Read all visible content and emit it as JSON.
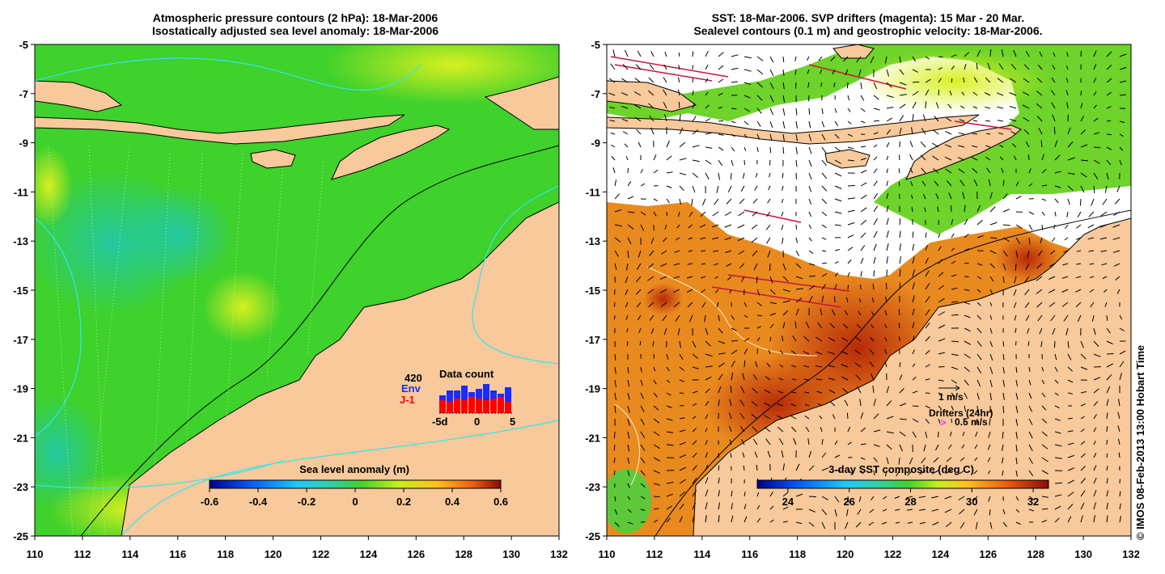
{
  "left_panel": {
    "title_line1": "Atmospheric pressure contours (2 hPa): 18-Mar-2006",
    "title_line2": "Isostatically adjusted sea level anomaly: 18-Mar-2006",
    "colorbar_label": "Sea level anomaly (m)",
    "colorbar_ticks": [
      "-0.6",
      "-0.4",
      "-0.2",
      "0",
      "0.2",
      "0.4",
      "0.6"
    ],
    "data_count": {
      "label": "Data count",
      "max": "420",
      "env_label": "Env",
      "j1_label": "J-1",
      "xticks": [
        "-5d",
        "0",
        "5"
      ],
      "env_values": [
        0.55,
        0.7,
        0.7,
        0.85,
        0.65,
        0.75,
        0.9,
        0.7,
        0.6,
        0.8
      ],
      "j1_values": [
        0.4,
        0.35,
        0.45,
        0.4,
        0.5,
        0.45,
        0.4,
        0.45,
        0.5,
        0.35
      ]
    }
  },
  "right_panel": {
    "title_line1": "SST: 18-Mar-2006. SVP drifters (magenta): 15 Mar - 20 Mar.",
    "title_line2": "Sealevel contours (0.1 m) and geostrophic velocity: 18-Mar-2006.",
    "colorbar_label": "3-day SST composite (deg C)",
    "colorbar_ticks": [
      "24",
      "26",
      "28",
      "30",
      "32"
    ],
    "velocity_scale_label": "1 m/s",
    "drifters_label": "Drifters (24hr)",
    "drifter_scale_label": "0.5 m/s",
    "drifter_symbol": ">"
  },
  "axes": {
    "lat_ticks": [
      "-5",
      "-7",
      "-9",
      "-11",
      "-13",
      "-15",
      "-17",
      "-19",
      "-21",
      "-23",
      "-25"
    ],
    "lon_ticks": [
      "110",
      "112",
      "114",
      "116",
      "118",
      "120",
      "122",
      "124",
      "126",
      "128",
      "130",
      "132"
    ]
  },
  "credit": "© IMOS 08-Feb-2013 13:00 Hobart Time",
  "colors": {
    "land": "#f7c99b",
    "sea_green": "#3fd12c",
    "sst_orange": "#e98a1f",
    "sst_red": "#c63a0d",
    "drifter_magenta": "#ff33ff",
    "contour_cyan": "#33e6ee"
  }
}
